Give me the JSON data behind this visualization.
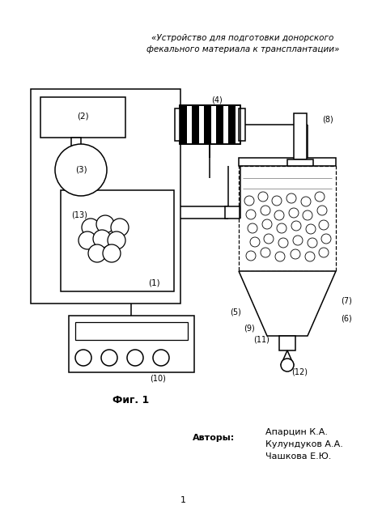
{
  "title_line1": "«Устройство для подготовки донорского",
  "title_line2": "фекального материала к трансплантации»",
  "fig_caption": "Фиг. 1",
  "authors_label": "Авторы:",
  "authors": [
    "Апарцин К.А.",
    "Кулундуков А.А.",
    "Чашкова Е.Ю."
  ],
  "page_num": "1",
  "bg_color": "#ffffff",
  "line_color": "#000000"
}
